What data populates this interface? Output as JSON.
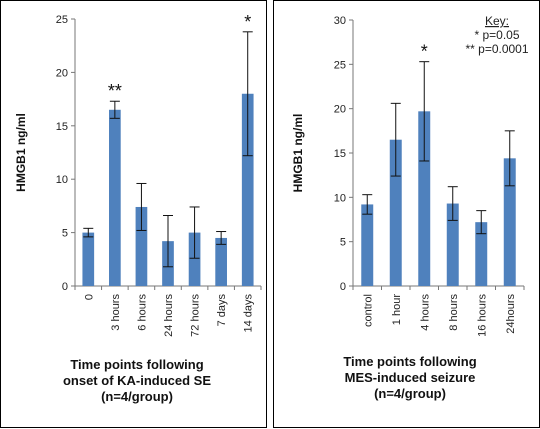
{
  "chart_data": [
    {
      "type": "bar",
      "ylabel": "HMGB1 ng/ml",
      "ylim": [
        0,
        25
      ],
      "yticks": [
        "0",
        "5",
        "10",
        "15",
        "20",
        "25"
      ],
      "categories": [
        "0",
        "3 hours",
        "6 hours",
        "24 hours",
        "72 hours",
        "7 days",
        "14 days"
      ],
      "values": [
        5.0,
        16.5,
        7.4,
        4.2,
        5.0,
        4.5,
        18.0
      ],
      "errors": [
        0.4,
        0.8,
        2.2,
        2.4,
        2.4,
        0.6,
        5.8
      ],
      "annotations": [
        "",
        "**",
        "",
        "",
        "",
        "",
        "*"
      ],
      "xlabel_lines": [
        "Time points following",
        "onset of KA-induced SE",
        "(n=4/group)"
      ],
      "grid": false
    },
    {
      "type": "bar",
      "ylabel": "HMGB1 ng/ml",
      "ylim": [
        0,
        30
      ],
      "yticks": [
        "0",
        "5",
        "10",
        "15",
        "20",
        "25",
        "30"
      ],
      "categories": [
        "control",
        "1 hour",
        "4 hours",
        "8 hours",
        "16 hours",
        "24hours"
      ],
      "values": [
        9.2,
        16.5,
        19.7,
        9.3,
        7.2,
        14.4
      ],
      "errors": [
        1.1,
        4.1,
        5.6,
        1.9,
        1.3,
        3.1
      ],
      "annotations": [
        "",
        "",
        "*",
        "",
        "",
        ""
      ],
      "xlabel_lines": [
        "Time points following",
        "MES-induced seizure",
        "(n=4/group)"
      ],
      "key": {
        "title": "Key:",
        "lines": [
          "* p=0.05",
          "** p=0.0001"
        ]
      },
      "grid": false
    }
  ],
  "colors": {
    "bar": "#4f81bd",
    "error": "#111111",
    "axis": "#777777"
  }
}
